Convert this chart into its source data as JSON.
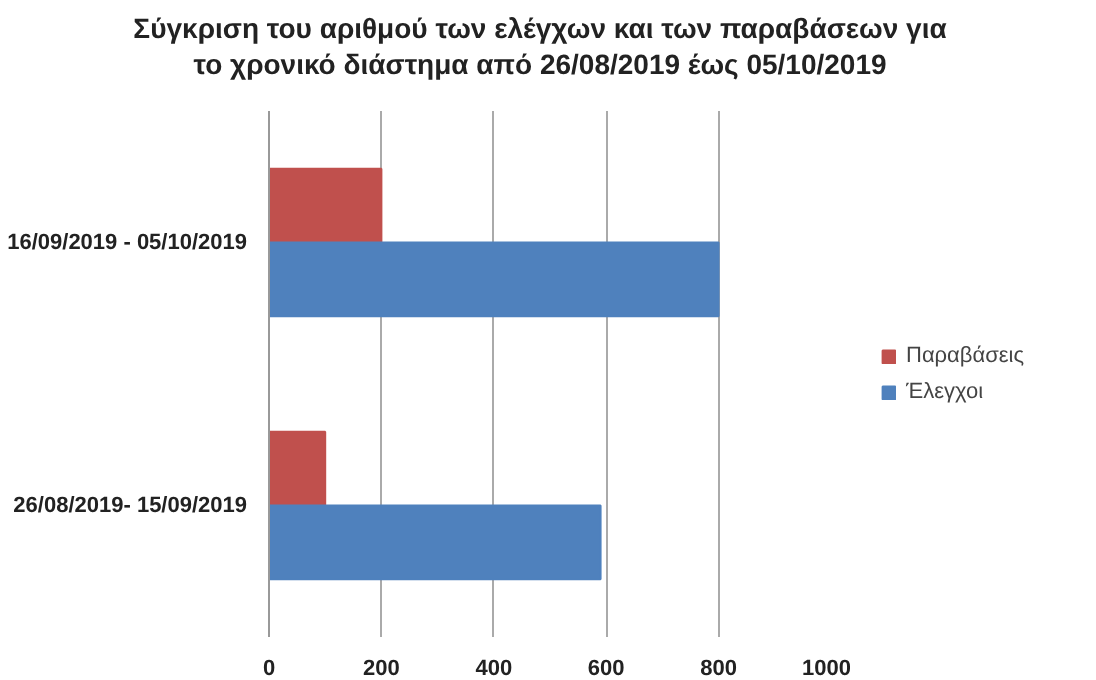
{
  "chart_data": {
    "type": "bar",
    "orientation": "horizontal",
    "title": "Σύγκριση του αριθμού των ελέγχων και των παραβάσεων για το χρονικό διάστημα από 26/08/2019 έως 05/10/2019",
    "categories": [
      "16/09/2019 - 05/10/2019",
      "26/08/2019- 15/09/2019"
    ],
    "series": [
      {
        "name": "Παραβάσεις",
        "color": "#c0504d",
        "values": [
          200,
          100
        ]
      },
      {
        "name": "Έλεγχοι",
        "color": "#4f81bd",
        "values": [
          800,
          590
        ]
      }
    ],
    "xlim": [
      0,
      1000
    ],
    "xticks": [
      0,
      200,
      400,
      600,
      800,
      1000
    ],
    "grid": "x",
    "legend": "right"
  }
}
